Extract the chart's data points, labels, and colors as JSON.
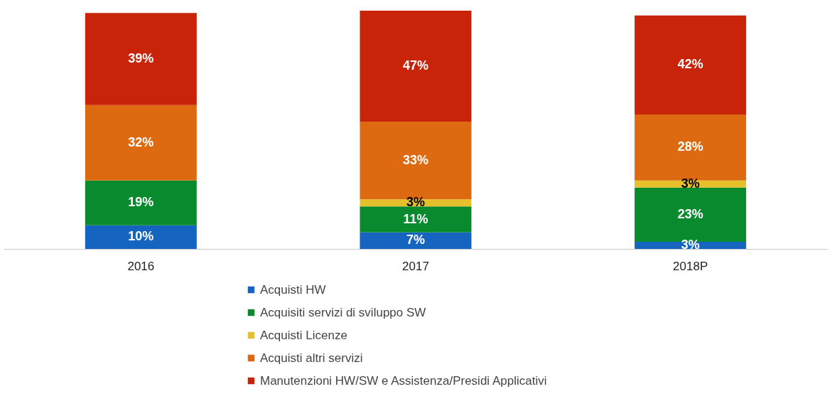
{
  "chart_data": {
    "type": "bar",
    "stacked": true,
    "legend": "bottom",
    "categories": [
      "2016",
      "2017",
      "2018P"
    ],
    "series": [
      {
        "name": "Acquisti HW",
        "color": "#1565c0",
        "values": [
          10,
          7,
          3
        ],
        "value_labels": [
          "10%",
          "7%",
          "3%"
        ]
      },
      {
        "name": "Acquisiti servizi di sviluppo SW",
        "color": "#0a8a2e",
        "values": [
          19,
          11,
          23
        ],
        "value_labels": [
          "19%",
          "11%",
          "23%"
        ]
      },
      {
        "name": "Acquisti Licenze",
        "color": "#e6c02a",
        "values": [
          null,
          3,
          3
        ],
        "value_labels": [
          null,
          "3%",
          "3%"
        ]
      },
      {
        "name": "Acquisti altri servizi",
        "color": "#dd6a10",
        "values": [
          32,
          33,
          28
        ],
        "value_labels": [
          "32%",
          "33%",
          "28%"
        ]
      },
      {
        "name": "Manutenzioni HW/SW e Assistenza/Presidi Applicativi",
        "color": "#c8240a",
        "values": [
          39,
          47,
          42
        ],
        "value_labels": [
          "39%",
          "47%",
          "42%"
        ]
      }
    ]
  }
}
